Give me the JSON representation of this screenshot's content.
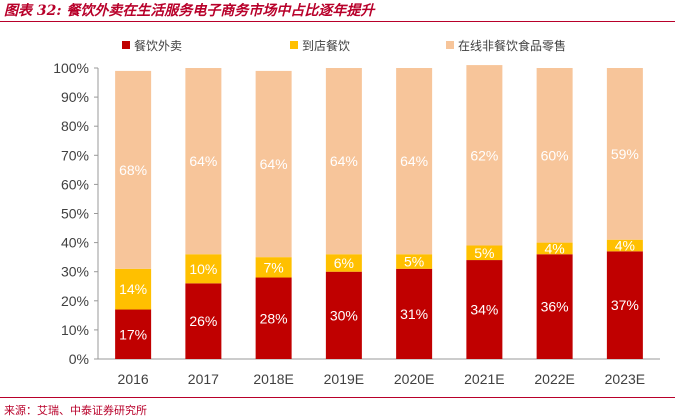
{
  "header": {
    "title": "图表 32: 餐饮外卖在生活服务电子商务市场中占比逐年提升"
  },
  "footer": {
    "source": "来源：艾瑞、中泰证券研究所"
  },
  "colors": {
    "delivery": "#c00000",
    "dine_in": "#ffc000",
    "retail": "#f7c59a",
    "title": "#b8002a",
    "axis": "#999999"
  },
  "chart_data": {
    "type": "bar",
    "stacked": true,
    "title": "餐饮外卖在生活服务电子商务市场中占比逐年提升",
    "xlabel": "",
    "ylabel": "",
    "ylim": [
      0,
      100
    ],
    "y_ticks": [
      "0%",
      "10%",
      "20%",
      "30%",
      "40%",
      "50%",
      "60%",
      "70%",
      "80%",
      "90%",
      "100%"
    ],
    "legend_position": "top",
    "categories": [
      "2016",
      "2017",
      "2018E",
      "2019E",
      "2020E",
      "2021E",
      "2022E",
      "2023E"
    ],
    "series": [
      {
        "name": "餐饮外卖",
        "color": "#c00000",
        "values": [
          17,
          26,
          28,
          30,
          31,
          34,
          36,
          37
        ],
        "labels": [
          "17%",
          "26%",
          "28%",
          "30%",
          "31%",
          "34%",
          "36%",
          "37%"
        ]
      },
      {
        "name": "到店餐饮",
        "color": "#ffc000",
        "values": [
          14,
          10,
          7,
          6,
          5,
          5,
          4,
          4
        ],
        "labels": [
          "14%",
          "10%",
          "7%",
          "6%",
          "5%",
          "5%",
          "4%",
          "4%"
        ]
      },
      {
        "name": "在线非餐饮食品零售",
        "color": "#f7c59a",
        "values": [
          68,
          64,
          64,
          64,
          64,
          62,
          60,
          59
        ],
        "labels": [
          "68%",
          "64%",
          "64%",
          "64%",
          "64%",
          "62%",
          "60%",
          "59%"
        ]
      }
    ]
  }
}
